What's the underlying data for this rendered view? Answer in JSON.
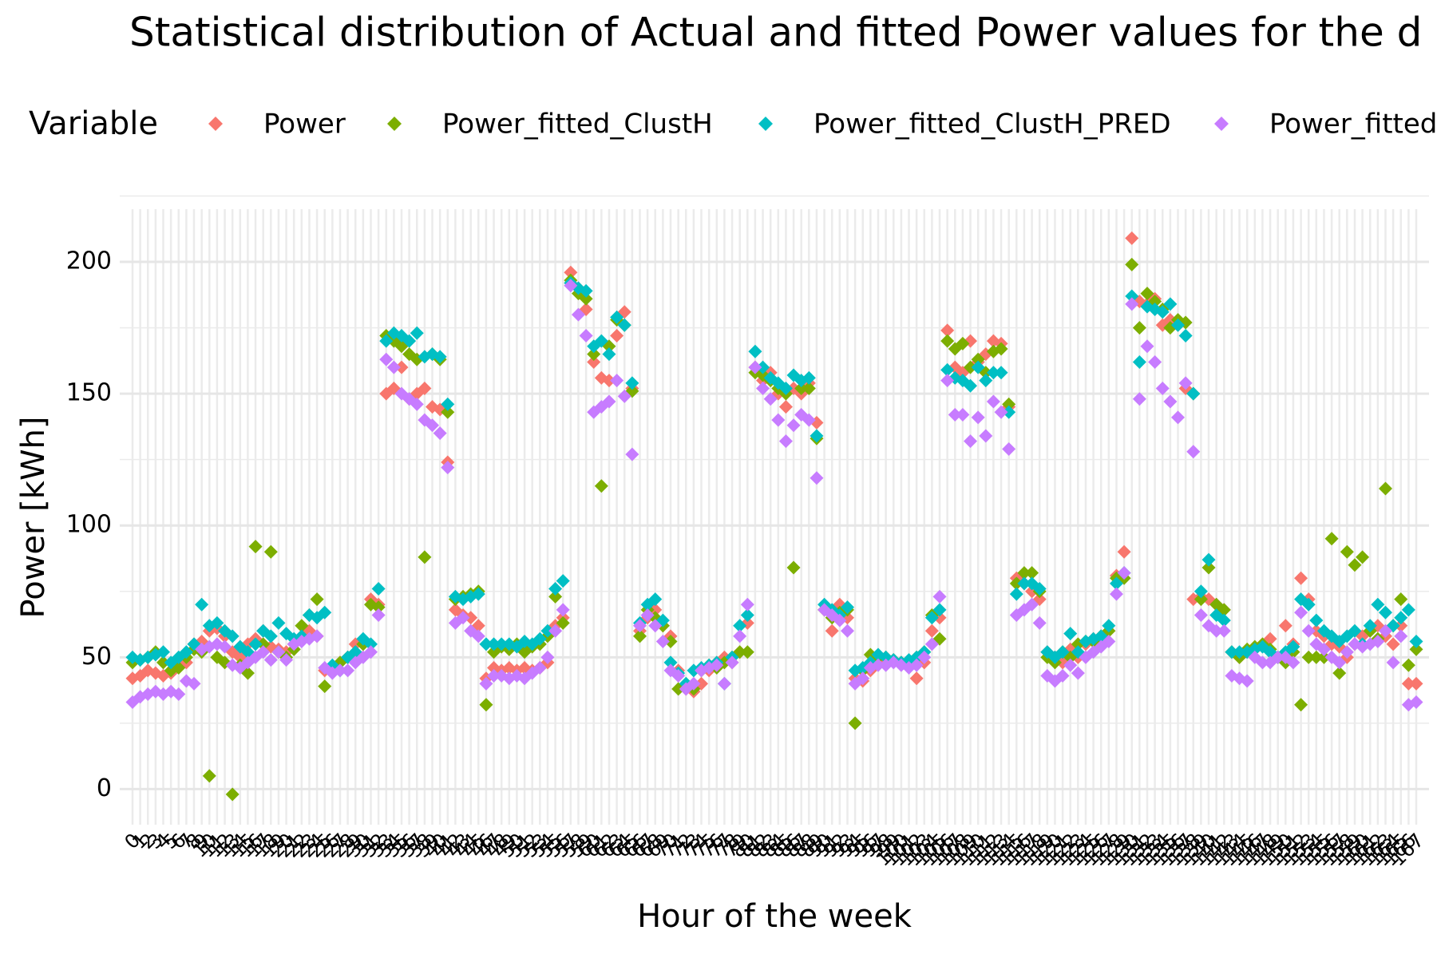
{
  "chart_data": {
    "type": "scatter",
    "title": "Statistical distribution of Actual and fitted Power values for the d",
    "x_label": "Hour of the week",
    "y_label": "Power [kWh]",
    "legend_title": "Variable",
    "legend": "top",
    "categories": [
      "0",
      "1",
      "2",
      "3",
      "4",
      "5",
      "6",
      "7",
      "8",
      "9",
      "10",
      "11",
      "12",
      "13",
      "14",
      "15",
      "16",
      "17",
      "18",
      "19",
      "20",
      "21",
      "22",
      "23",
      "24",
      "25",
      "26",
      "27",
      "28",
      "29",
      "30",
      "31",
      "32",
      "33",
      "34",
      "35",
      "36",
      "37",
      "38",
      "39",
      "40",
      "41",
      "42",
      "43",
      "44",
      "45",
      "46",
      "47",
      "48",
      "49",
      "50",
      "51",
      "52",
      "53",
      "54",
      "55",
      "56",
      "57",
      "58",
      "59",
      "60",
      "61",
      "62",
      "63",
      "64",
      "65",
      "66",
      "67",
      "68",
      "69",
      "70",
      "71",
      "72",
      "73",
      "74",
      "75",
      "76",
      "77",
      "78",
      "79",
      "80",
      "81",
      "82",
      "83",
      "84",
      "85",
      "86",
      "87",
      "88",
      "89",
      "90",
      "91",
      "92",
      "93",
      "94",
      "95",
      "96",
      "97",
      "98",
      "99",
      "100",
      "101",
      "102",
      "103",
      "104",
      "105",
      "106",
      "107",
      "108",
      "109",
      "110",
      "111",
      "112",
      "113",
      "114",
      "115",
      "116",
      "117",
      "118",
      "119",
      "120",
      "121",
      "122",
      "123",
      "124",
      "125",
      "126",
      "127",
      "128",
      "129",
      "130",
      "131",
      "132",
      "133",
      "134",
      "135",
      "136",
      "137",
      "138",
      "139",
      "140",
      "141",
      "142",
      "143",
      "144",
      "145",
      "146",
      "147",
      "148",
      "149",
      "150",
      "151",
      "152",
      "153",
      "154",
      "155",
      "156",
      "157",
      "158",
      "159",
      "160",
      "161",
      "162",
      "163",
      "164",
      "165",
      "166",
      "167"
    ],
    "ylim": [
      -13.5,
      220
    ],
    "yticks": [
      0,
      50,
      100,
      150,
      200
    ],
    "grid": true,
    "series": [
      {
        "name": "Power",
        "color": "#F8766D",
        "values": [
          42,
          43,
          45,
          44,
          43,
          44,
          47,
          48,
          55,
          56,
          60,
          61,
          58,
          52,
          50,
          55,
          57,
          60,
          54,
          53,
          52,
          55,
          58,
          60,
          58,
          45,
          46,
          48,
          50,
          55,
          55,
          72,
          70,
          150,
          152,
          160,
          148,
          150,
          152,
          145,
          144,
          124,
          68,
          66,
          65,
          62,
          42,
          46,
          45,
          46,
          45,
          46,
          45,
          46,
          48,
          62,
          65,
          196,
          190,
          182,
          162,
          156,
          155,
          172,
          181,
          152,
          60,
          65,
          68,
          62,
          58,
          45,
          38,
          37,
          40,
          45,
          48,
          50,
          48,
          52,
          63,
          160,
          155,
          158,
          150,
          145,
          152,
          150,
          154,
          139,
          68,
          60,
          70,
          65,
          42,
          41,
          45,
          48,
          50,
          49,
          48,
          47,
          42,
          48,
          60,
          65,
          174,
          160,
          158,
          170,
          162,
          165,
          170,
          169,
          145,
          80,
          78,
          75,
          72,
          52,
          50,
          48,
          53,
          50,
          55,
          57,
          58,
          60,
          81,
          90,
          209,
          185,
          184,
          186,
          176,
          178,
          176,
          152,
          72,
          73,
          72,
          70,
          68,
          52,
          50,
          52,
          53,
          55,
          57,
          50,
          62,
          55,
          80,
          72,
          60,
          58,
          55,
          54,
          50,
          55,
          58,
          60,
          62,
          58,
          55,
          62,
          40,
          40
        ]
      },
      {
        "name": "Power_fitted_ClustH",
        "color": "#7CAE00",
        "values": [
          48,
          49,
          50,
          52,
          48,
          45,
          46,
          50,
          53,
          52,
          5,
          50,
          48,
          -2,
          47,
          44,
          92,
          55,
          90,
          52,
          50,
          53,
          62,
          66,
          72,
          39,
          45,
          48,
          50,
          52,
          55,
          70,
          69,
          172,
          170,
          168,
          165,
          163,
          88,
          165,
          163,
          143,
          72,
          73,
          74,
          75,
          32,
          52,
          54,
          53,
          55,
          52,
          54,
          55,
          58,
          73,
          63,
          193,
          188,
          186,
          165,
          115,
          168,
          178,
          176,
          151,
          58,
          68,
          65,
          62,
          56,
          38,
          40,
          38,
          45,
          47,
          46,
          48,
          50,
          52,
          52,
          158,
          157,
          155,
          152,
          150,
          84,
          152,
          152,
          133,
          68,
          65,
          67,
          68,
          25,
          45,
          51,
          50,
          50,
          49,
          48,
          47,
          50,
          52,
          66,
          57,
          170,
          167,
          169,
          160,
          163,
          158,
          166,
          167,
          146,
          78,
          82,
          82,
          75,
          50,
          48,
          52,
          50,
          55,
          56,
          56,
          58,
          60,
          80,
          80,
          199,
          175,
          188,
          185,
          182,
          175,
          178,
          177,
          150,
          72,
          84,
          70,
          68,
          52,
          50,
          53,
          54,
          55,
          53,
          50,
          48,
          52,
          32,
          50,
          50,
          50,
          95,
          44,
          90,
          85,
          88,
          60,
          57,
          114,
          62,
          72,
          47,
          53
        ]
      },
      {
        "name": "Power_fitted_ClustH_PRED",
        "color": "#00BFC4",
        "values": [
          50,
          49,
          50,
          51,
          52,
          48,
          50,
          52,
          55,
          70,
          62,
          63,
          60,
          58,
          54,
          52,
          55,
          60,
          58,
          63,
          59,
          57,
          58,
          66,
          65,
          67,
          47,
          45,
          50,
          52,
          57,
          55,
          76,
          170,
          173,
          172,
          170,
          173,
          164,
          165,
          164,
          146,
          73,
          72,
          73,
          74,
          55,
          55,
          55,
          55,
          54,
          56,
          55,
          57,
          60,
          76,
          79,
          192,
          190,
          189,
          168,
          170,
          165,
          179,
          176,
          154,
          63,
          70,
          72,
          64,
          48,
          44,
          40,
          45,
          46,
          47,
          48,
          40,
          50,
          62,
          66,
          166,
          160,
          156,
          154,
          152,
          157,
          155,
          156,
          134,
          70,
          68,
          66,
          69,
          45,
          46,
          48,
          51,
          50,
          49,
          48,
          49,
          50,
          52,
          65,
          68,
          159,
          156,
          155,
          153,
          160,
          155,
          158,
          158,
          143,
          74,
          78,
          78,
          76,
          52,
          50,
          52,
          59,
          52,
          56,
          57,
          58,
          62,
          78,
          82,
          187,
          162,
          183,
          182,
          181,
          184,
          176,
          172,
          150,
          75,
          87,
          66,
          64,
          52,
          52,
          52,
          53,
          54,
          52,
          50,
          52,
          54,
          72,
          70,
          64,
          60,
          58,
          56,
          58,
          60,
          55,
          62,
          70,
          67,
          62,
          65,
          68,
          56
        ]
      },
      {
        "name": "Power_fitted",
        "color": "#C77CFF",
        "values": [
          33,
          35,
          36,
          37,
          36,
          37,
          36,
          41,
          40,
          53,
          54,
          55,
          54,
          47,
          46,
          48,
          50,
          52,
          49,
          52,
          49,
          55,
          56,
          57,
          58,
          46,
          44,
          45,
          45,
          48,
          50,
          52,
          66,
          163,
          160,
          150,
          148,
          146,
          140,
          138,
          135,
          122,
          63,
          65,
          60,
          58,
          40,
          43,
          43,
          42,
          43,
          42,
          44,
          46,
          50,
          60,
          68,
          191,
          180,
          172,
          143,
          145,
          147,
          155,
          149,
          127,
          62,
          66,
          62,
          56,
          45,
          43,
          38,
          40,
          45,
          46,
          47,
          40,
          48,
          58,
          70,
          160,
          152,
          148,
          140,
          132,
          138,
          142,
          140,
          118,
          68,
          66,
          64,
          60,
          40,
          42,
          46,
          47,
          47,
          48,
          47,
          46,
          47,
          50,
          55,
          73,
          155,
          142,
          142,
          132,
          141,
          134,
          147,
          143,
          129,
          66,
          68,
          70,
          63,
          43,
          41,
          43,
          47,
          44,
          50,
          52,
          54,
          56,
          74,
          82,
          184,
          148,
          168,
          162,
          152,
          147,
          141,
          154,
          128,
          66,
          62,
          60,
          60,
          43,
          42,
          41,
          50,
          48,
          48,
          50,
          50,
          48,
          67,
          60,
          55,
          53,
          50,
          48,
          52,
          55,
          54,
          55,
          56,
          60,
          48,
          58,
          32,
          33
        ]
      }
    ]
  }
}
